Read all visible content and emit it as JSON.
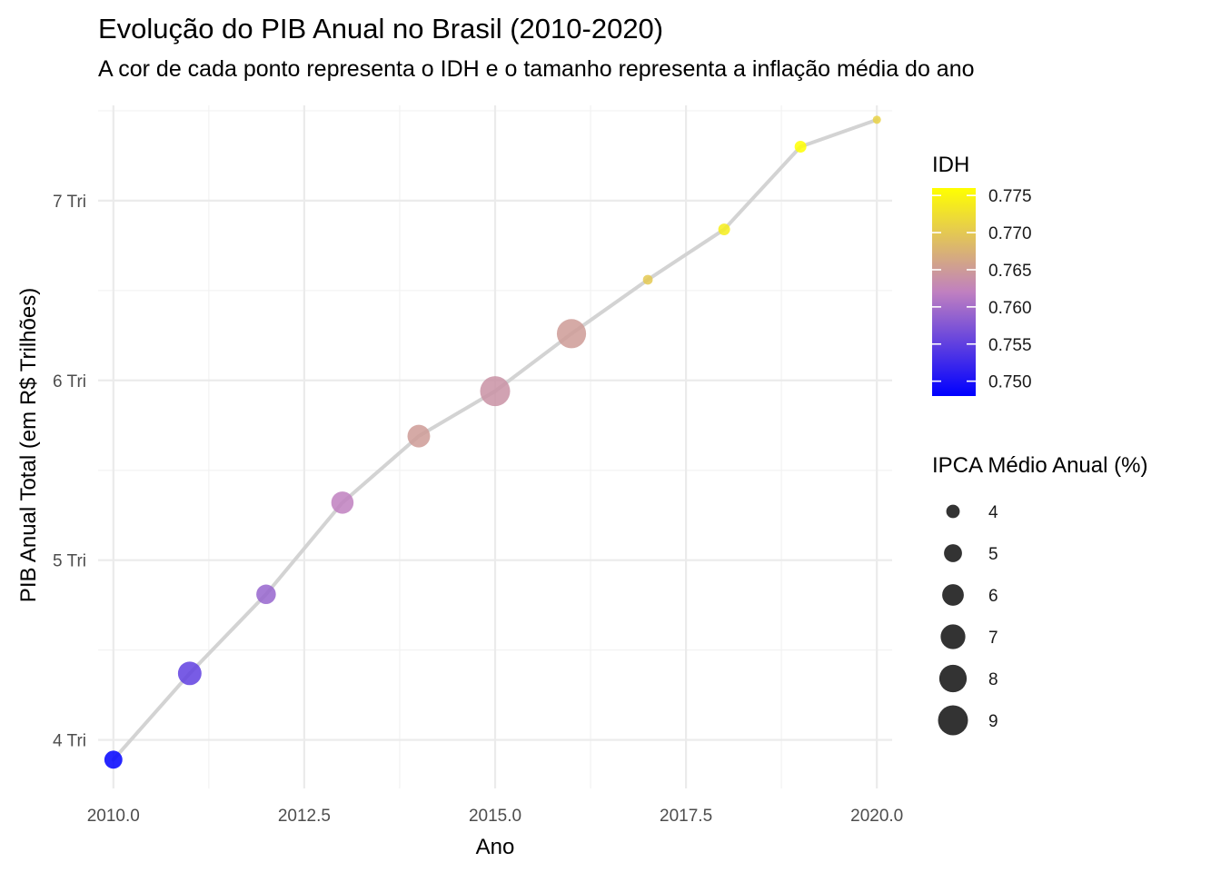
{
  "chart_data": {
    "type": "scatter",
    "title": "Evolução do PIB Anual no Brasil (2010-2020)",
    "subtitle": "A cor de cada ponto representa o IDH e o tamanho representa a inflação média do ano",
    "xlabel": "Ano",
    "ylabel": "PIB Anual Total (em R$ Trilhões)",
    "xlim": [
      2009.8,
      2020.2
    ],
    "ylim": [
      3.73,
      7.53
    ],
    "x_ticks": [
      2010.0,
      2012.5,
      2015.0,
      2017.5,
      2020.0
    ],
    "x_tick_labels": [
      "2010.0",
      "2012.5",
      "2015.0",
      "2017.5",
      "2020.0"
    ],
    "y_ticks": [
      4,
      5,
      6,
      7
    ],
    "y_tick_labels": [
      "4 Tri",
      "5 Tri",
      "6 Tri",
      "7 Tri"
    ],
    "grid": true,
    "connect_line": true,
    "line_color": "#d3d3d3",
    "x": [
      2010,
      2011,
      2012,
      2013,
      2014,
      2015,
      2016,
      2017,
      2018,
      2019,
      2020
    ],
    "y": [
      3.89,
      4.37,
      4.81,
      5.32,
      5.69,
      5.94,
      6.26,
      6.56,
      6.84,
      7.3,
      7.45
    ],
    "idh": [
      0.748,
      0.755,
      0.759,
      0.762,
      0.765,
      0.764,
      0.765,
      0.77,
      0.774,
      0.776,
      0.771
    ],
    "ipca": [
      5.0,
      6.6,
      5.4,
      6.2,
      6.3,
      9.0,
      8.7,
      3.4,
      3.7,
      3.7,
      3.2
    ],
    "color_legend": {
      "title": "IDH",
      "min": 0.748,
      "max": 0.776,
      "low_color": "#0000ff",
      "mid_color": "#c080c0",
      "high_color": "#ffff00",
      "breaks": [
        0.775,
        0.77,
        0.765,
        0.76,
        0.755,
        0.75
      ],
      "labels": [
        "0.775",
        "0.770",
        "0.765",
        "0.760",
        "0.755",
        "0.750"
      ]
    },
    "size_legend": {
      "title": "IPCA Médio Anual (%)",
      "breaks": [
        4,
        5,
        6,
        7,
        8,
        9
      ],
      "labels": [
        "4",
        "5",
        "6",
        "7",
        "8",
        "9"
      ],
      "color": "#333333"
    },
    "legend_position": "right"
  }
}
